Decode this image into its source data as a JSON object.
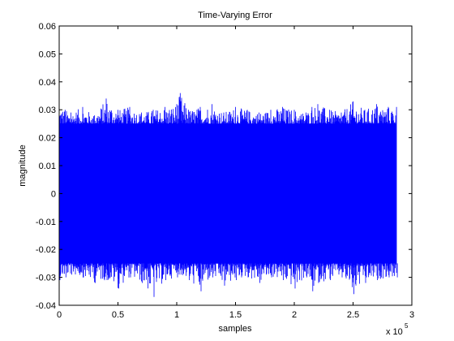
{
  "chart_data": {
    "type": "line",
    "title": "Time-Varying Error",
    "xlabel": "samples",
    "ylabel": "magnitude",
    "x_multiplier_label": "x 10",
    "x_multiplier_exponent": "5",
    "xlim": [
      0,
      3
    ],
    "ylim": [
      -0.04,
      0.06
    ],
    "x_ticks": [
      "0",
      "0.5",
      "1",
      "1.5",
      "2",
      "2.5",
      "3"
    ],
    "y_ticks": [
      "-0.04",
      "-0.03",
      "-0.02",
      "-0.01",
      "0",
      "0.01",
      "0.02",
      "0.03",
      "0.04",
      "0.05",
      "0.06"
    ],
    "grid": false,
    "series": [
      {
        "color": "#0000ff",
        "x_range": [
          0,
          2.87
        ],
        "band_core_upper": 0.025,
        "band_core_lower": -0.025,
        "envelope": {
          "x": [
            0.0,
            0.05,
            0.1,
            0.2,
            0.3,
            0.4,
            0.5,
            0.6,
            0.7,
            0.8,
            0.9,
            1.0,
            1.03,
            1.1,
            1.2,
            1.3,
            1.4,
            1.5,
            1.6,
            1.7,
            1.8,
            1.9,
            2.0,
            2.1,
            2.15,
            2.2,
            2.3,
            2.4,
            2.5,
            2.6,
            2.7,
            2.8,
            2.87
          ],
          "upper": [
            0.032,
            0.03,
            0.029,
            0.031,
            0.028,
            0.034,
            0.03,
            0.031,
            0.029,
            0.03,
            0.031,
            0.032,
            0.036,
            0.03,
            0.031,
            0.032,
            0.029,
            0.031,
            0.03,
            0.029,
            0.03,
            0.031,
            0.03,
            0.029,
            0.031,
            0.032,
            0.03,
            0.029,
            0.033,
            0.03,
            0.032,
            0.031,
            0.031
          ],
          "lower": [
            -0.031,
            -0.03,
            -0.029,
            -0.03,
            -0.032,
            -0.031,
            -0.034,
            -0.03,
            -0.032,
            -0.037,
            -0.031,
            -0.03,
            -0.029,
            -0.031,
            -0.035,
            -0.03,
            -0.033,
            -0.031,
            -0.03,
            -0.032,
            -0.03,
            -0.031,
            -0.034,
            -0.03,
            -0.035,
            -0.032,
            -0.031,
            -0.03,
            -0.036,
            -0.032,
            -0.031,
            -0.03,
            -0.03
          ]
        }
      }
    ]
  }
}
